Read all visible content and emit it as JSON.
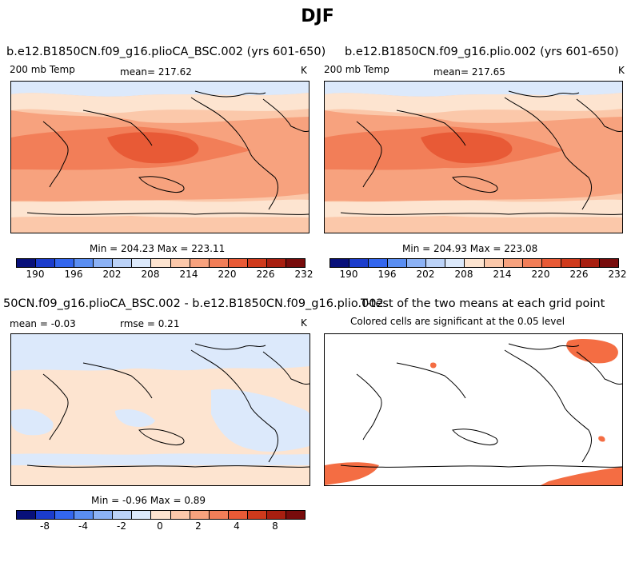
{
  "title": "DJF",
  "panels": [
    {
      "title": "b.e12.B1850CN.f09_g16.plioCA_BSC.002 (yrs 601-650)",
      "left_label": "200 mb Temp",
      "center_label": "mean= 217.62",
      "units": "K",
      "minmax": "Min = 204.23 Max = 223.11",
      "colorbar_ticks": [
        "190",
        "196",
        "202",
        "208",
        "214",
        "220",
        "226",
        "232"
      ]
    },
    {
      "title": "b.e12.B1850CN.f09_g16.plio.002 (yrs 601-650)",
      "left_label": "200 mb Temp",
      "center_label": "mean= 217.65",
      "units": "K",
      "minmax": "Min = 204.93 Max = 223.08",
      "colorbar_ticks": [
        "190",
        "196",
        "202",
        "208",
        "214",
        "220",
        "226",
        "232"
      ]
    },
    {
      "title": "50CN.f09_g16.plioCA_BSC.002 - b.e12.B1850CN.f09_g16.plio.002",
      "left_label": "mean =  -0.03",
      "center_label": "rmse =   0.21",
      "units": "K",
      "minmax": "Min =  -0.96 Max =   0.89",
      "colorbar_ticks": [
        "-8",
        "-4",
        "-2",
        "0",
        "2",
        "4",
        "8"
      ]
    },
    {
      "title": "T-test of the two means at each grid point",
      "subtitle": "Colored cells are significant at the 0.05 level"
    }
  ],
  "colors": {
    "abs_scale": [
      "#08107a",
      "#1b3ccc",
      "#3366ee",
      "#5a8ef2",
      "#8cb2f5",
      "#bcd3f8",
      "#dce9fb",
      "#fde4d0",
      "#fbc8aa",
      "#f7a27e",
      "#f27e58",
      "#e85a36",
      "#cf3a1c",
      "#a81f10",
      "#780c0c"
    ],
    "diff_scale": [
      "#08107a",
      "#1b3ccc",
      "#3366ee",
      "#5a8ef2",
      "#8cb2f5",
      "#bcd3f8",
      "#dce9fb",
      "#fde4d0",
      "#fbc8aa",
      "#f7a27e",
      "#f27e58",
      "#e85a36",
      "#cf3a1c",
      "#a81f10",
      "#780c0c"
    ],
    "significant": "#f46d43"
  }
}
